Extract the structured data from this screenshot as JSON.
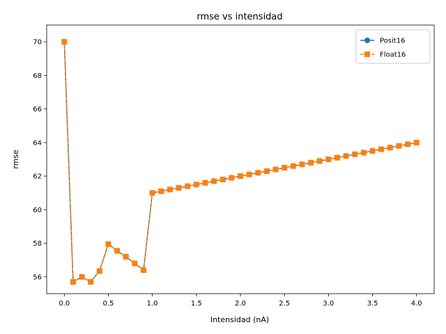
{
  "chart_data": {
    "type": "line",
    "title": "rmse vs intensidad",
    "xlabel": "Intensidad (nA)",
    "ylabel": "rmse",
    "xlim": [
      -0.2,
      4.2
    ],
    "ylim": [
      55,
      71
    ],
    "xticks": [
      "0.0",
      "0.5",
      "1.0",
      "1.5",
      "2.0",
      "2.5",
      "3.0",
      "3.5",
      "4.0"
    ],
    "yticks": [
      "56",
      "58",
      "60",
      "62",
      "64",
      "66",
      "68",
      "70"
    ],
    "grid": false,
    "legend_position": "top-right",
    "x": [
      0.0,
      0.1,
      0.2,
      0.3,
      0.4,
      0.5,
      0.6,
      0.7,
      0.8,
      0.9,
      1.0,
      1.1,
      1.2,
      1.3,
      1.4,
      1.5,
      1.6,
      1.7,
      1.8,
      1.9,
      2.0,
      2.1,
      2.2,
      2.3,
      2.4,
      2.5,
      2.6,
      2.7,
      2.8,
      2.9,
      3.0,
      3.1,
      3.2,
      3.3,
      3.4,
      3.5,
      3.6,
      3.7,
      3.8,
      3.9,
      4.0
    ],
    "series": [
      {
        "name": "Posit16",
        "color": "#1f77b4",
        "marker": "circle",
        "linestyle": "solid",
        "values": [
          70.0,
          55.7,
          56.0,
          55.7,
          56.35,
          57.95,
          57.55,
          57.2,
          56.8,
          56.4,
          61.0,
          61.1,
          61.2,
          61.3,
          61.4,
          61.5,
          61.6,
          61.7,
          61.8,
          61.9,
          62.0,
          62.1,
          62.2,
          62.3,
          62.4,
          62.5,
          62.6,
          62.7,
          62.8,
          62.9,
          63.0,
          63.1,
          63.2,
          63.3,
          63.4,
          63.5,
          63.6,
          63.7,
          63.8,
          63.9,
          64.0
        ]
      },
      {
        "name": "Float16",
        "color": "#ff7f0e",
        "marker": "square",
        "linestyle": "dashed",
        "values": [
          70.0,
          55.7,
          56.0,
          55.7,
          56.35,
          57.95,
          57.55,
          57.2,
          56.8,
          56.4,
          61.0,
          61.1,
          61.2,
          61.3,
          61.4,
          61.5,
          61.6,
          61.7,
          61.8,
          61.9,
          62.0,
          62.1,
          62.2,
          62.3,
          62.4,
          62.5,
          62.6,
          62.7,
          62.8,
          62.9,
          63.0,
          63.1,
          63.2,
          63.3,
          63.4,
          63.5,
          63.6,
          63.7,
          63.8,
          63.9,
          64.0
        ]
      }
    ]
  }
}
